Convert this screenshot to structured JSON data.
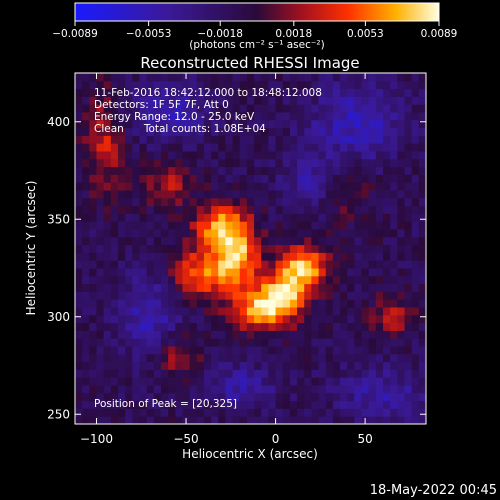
{
  "chart_data": {
    "type": "heatmap",
    "title": "Reconstructed RHESSI Image",
    "xlabel": "Heliocentric X (arcsec)",
    "ylabel": "Heliocentric Y (arcsec)",
    "xlim": [
      -112,
      84
    ],
    "ylim": [
      245,
      425
    ],
    "x_ticks": [
      {
        "value": -100,
        "label": "−100"
      },
      {
        "value": -50,
        "label": "−50"
      },
      {
        "value": 0,
        "label": "0"
      },
      {
        "value": 50,
        "label": "50"
      }
    ],
    "y_ticks": [
      {
        "value": 250,
        "label": "250"
      },
      {
        "value": 300,
        "label": "300"
      },
      {
        "value": 350,
        "label": "350"
      },
      {
        "value": 400,
        "label": "400"
      }
    ],
    "colorbar": {
      "min": -0.0089,
      "max": 0.0089,
      "ticks": [
        {
          "value": -0.0089,
          "label": "−0.0089"
        },
        {
          "value": -0.0053,
          "label": "−0.0053"
        },
        {
          "value": -0.0018,
          "label": "−0.0018"
        },
        {
          "value": 0.0018,
          "label": "0.0018"
        },
        {
          "value": 0.0053,
          "label": "0.0053"
        },
        {
          "value": 0.0089,
          "label": "0.0089"
        }
      ],
      "units_label": "(photons cm⁻² s⁻¹ asec⁻²)"
    },
    "annotations": [
      "11-Feb-2016 18:42:12.000 to 18:48:12.008",
      "Detectors: 1F 5F 7F, Att 0",
      "Energy Range: 12.0 - 25.0 keV",
      "Clean      Total counts: 1.08E+04"
    ],
    "peak_label": "Position of Peak = [20,325]",
    "grid": false,
    "sources": [
      {
        "x": -30,
        "y": 345,
        "sx": 11,
        "sy": 9,
        "amp": 0.0082
      },
      {
        "x": -40,
        "y": 322,
        "sx": 12,
        "sy": 8,
        "amp": 0.0072
      },
      {
        "x": -20,
        "y": 330,
        "sx": 8,
        "sy": 10,
        "amp": 0.0062
      },
      {
        "x": 15,
        "y": 325,
        "sx": 10,
        "sy": 8,
        "amp": 0.0085
      },
      {
        "x": -8,
        "y": 305,
        "sx": 12,
        "sy": 8,
        "amp": 0.0082
      },
      {
        "x": 5,
        "y": 312,
        "sx": 8,
        "sy": 8,
        "amp": 0.006
      },
      {
        "x": -95,
        "y": 390,
        "sx": 8,
        "sy": 18,
        "amp": 0.004
      },
      {
        "x": -60,
        "y": 368,
        "sx": 10,
        "sy": 8,
        "amp": 0.0035
      },
      {
        "x": 65,
        "y": 300,
        "sx": 8,
        "sy": 7,
        "amp": 0.004
      },
      {
        "x": -55,
        "y": 280,
        "sx": 10,
        "sy": 8,
        "amp": 0.0035
      },
      {
        "x": 40,
        "y": 365,
        "sx": 10,
        "sy": 10,
        "amp": 0.0025
      }
    ],
    "negative_regions": [
      {
        "x": -60,
        "y": 405,
        "sx": 16,
        "sy": 10,
        "amp": -0.004
      },
      {
        "x": 45,
        "y": 400,
        "sx": 18,
        "sy": 14,
        "amp": -0.0045
      },
      {
        "x": -70,
        "y": 300,
        "sx": 12,
        "sy": 16,
        "amp": -0.004
      },
      {
        "x": 60,
        "y": 260,
        "sx": 18,
        "sy": 10,
        "amp": -0.0035
      },
      {
        "x": -20,
        "y": 265,
        "sx": 14,
        "sy": 8,
        "amp": -0.0035
      },
      {
        "x": 20,
        "y": 370,
        "sx": 12,
        "sy": 10,
        "amp": -0.003
      }
    ]
  },
  "footer": {
    "timestamp": "18-May-2022 00:45"
  }
}
